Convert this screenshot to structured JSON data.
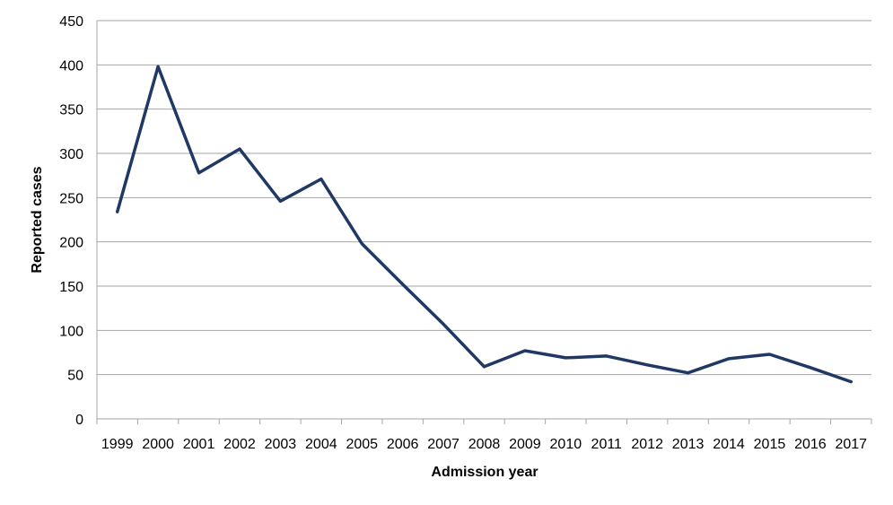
{
  "chart_data": {
    "type": "line",
    "title": "",
    "xlabel": "Admission year",
    "ylabel": "Reported cases",
    "ylim": [
      0,
      450
    ],
    "ytick_step": 50,
    "grid": true,
    "legend": "none",
    "x": [
      "1999",
      "2000",
      "2001",
      "2002",
      "2003",
      "2004",
      "2005",
      "2006",
      "2007",
      "2008",
      "2009",
      "2010",
      "2011",
      "2012",
      "2013",
      "2014",
      "2015",
      "2016",
      "2017"
    ],
    "series": [
      {
        "name": "Reported cases",
        "values": [
          234,
          398,
          278,
          305,
          246,
          271,
          198,
          152,
          107,
          59,
          77,
          69,
          71,
          61,
          52,
          68,
          73,
          58,
          42
        ]
      }
    ],
    "line_color": "#1f3864",
    "grid_color": "#a6a6a6"
  }
}
